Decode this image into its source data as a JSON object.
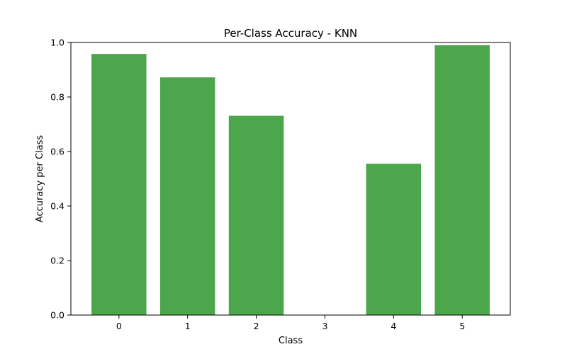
{
  "chart_data": {
    "type": "bar",
    "title": "Per-Class Accuracy - KNN",
    "xlabel": "Class",
    "ylabel": "Accuracy per Class",
    "categories": [
      "0",
      "1",
      "2",
      "3",
      "4",
      "5"
    ],
    "values": [
      0.958,
      0.872,
      0.731,
      0.0,
      0.555,
      0.99
    ],
    "ylim": [
      0,
      1.0
    ],
    "yticks": [
      "0.0",
      "0.2",
      "0.4",
      "0.6",
      "0.8",
      "1.0"
    ],
    "bar_color": "#4ca64c",
    "grid": false,
    "legend": "none"
  }
}
